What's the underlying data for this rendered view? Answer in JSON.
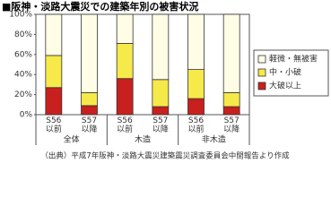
{
  "chart_data": {
    "type": "stacked-bar",
    "title": "■阪神・淡路大震災での建築年別の被害状況",
    "categories": [
      "S56\n以前",
      "S57\n以降",
      "S56\n以前",
      "S57\n以降",
      "S56\n以前",
      "S57\n以降"
    ],
    "groups": [
      "全体",
      "木造",
      "非木造"
    ],
    "series": [
      {
        "name": "大破以上",
        "color": "#c8201e",
        "values": [
          27,
          9,
          36,
          8,
          16,
          8
        ]
      },
      {
        "name": "中・小破",
        "color": "#f6e94a",
        "values": [
          32,
          13,
          35,
          27,
          29,
          14
        ]
      },
      {
        "name": "軽微・無被害",
        "color": "#fffde6",
        "values": [
          41,
          78,
          29,
          65,
          55,
          78
        ]
      }
    ],
    "ylim": [
      0,
      100
    ],
    "yticks": [
      {
        "value": 0,
        "label": "0%"
      },
      {
        "value": 20,
        "label": "20%"
      },
      {
        "value": 40,
        "label": "40%"
      },
      {
        "value": 60,
        "label": "60%"
      },
      {
        "value": 80,
        "label": "80%"
      },
      {
        "value": 100,
        "label": "100%"
      }
    ],
    "note": "（出典）平成7年阪神・淡路大震災建築震災調査委員会中間報告より作成"
  }
}
